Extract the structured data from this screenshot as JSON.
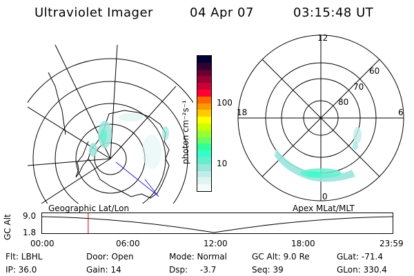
{
  "header": {
    "instrument": "Ultraviolet Imager",
    "date": "04 Apr 07",
    "time": "03:15:48 UT"
  },
  "colorbar": {
    "unit_label": "photon cm⁻²s⁻¹",
    "ticks": [
      "100",
      "10"
    ],
    "colors": [
      "#000033",
      "#330033",
      "#660033",
      "#990033",
      "#cc0033",
      "#ff0033",
      "#ff6600",
      "#ff9900",
      "#ffcc00",
      "#ffff00",
      "#ccff00",
      "#99ff33",
      "#66ff66",
      "#33ff99",
      "#33ffcc",
      "#66eecc",
      "#99e6dd",
      "#bfeee8",
      "#e0f5f3",
      "#f4fbfa"
    ]
  },
  "apex_plot": {
    "mlt_labels": {
      "top": "12",
      "left": "18",
      "right": "6",
      "bottom": "0"
    },
    "lat_labels": [
      "60",
      "70",
      "80"
    ]
  },
  "timeline": {
    "left_label": "Geographic Lat/Lon",
    "right_label": "Apex MLat/MLT",
    "axis_label": "GC Alt",
    "y_ticks": [
      "9.0",
      "1.8"
    ],
    "x_ticks": [
      "00:00",
      "06:00",
      "12:00",
      "18:00",
      "23:59"
    ],
    "marker_fraction": 0.133,
    "marker_color": "#cc0000"
  },
  "info": {
    "flt": "Flt: LBHL",
    "door": "Door: Open",
    "mode": "Mode: Normal",
    "gc_alt": "GC Alt: 9.0 Re",
    "glat": "GLat: -71.4",
    "ip": "IP: 36.0",
    "gain": "Gain: 14",
    "dsp_label": "Dsp:",
    "dsp_value": "-3.7",
    "seq": "Seq: 39",
    "glon": "GLon: 330.4"
  }
}
